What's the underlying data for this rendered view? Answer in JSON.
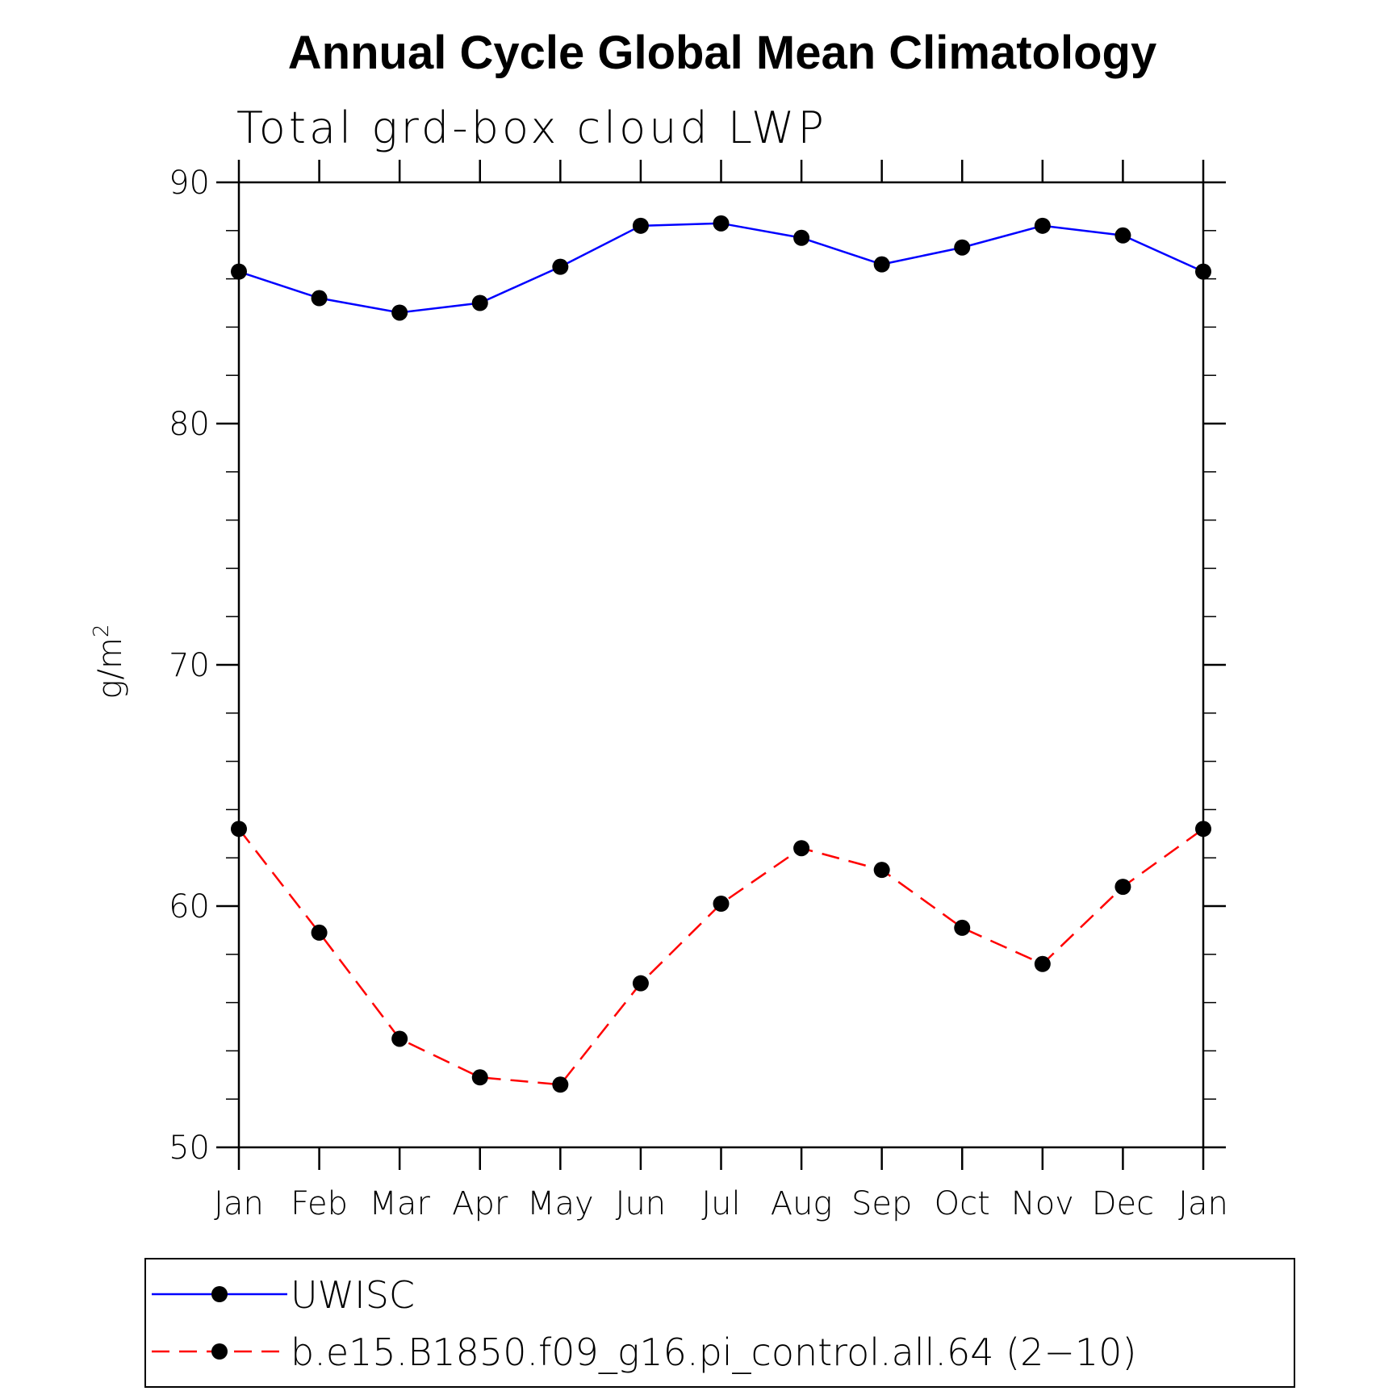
{
  "chart_data": {
    "type": "line",
    "title": "Annual Cycle Global Mean Climatology",
    "subtitle": "Total grd-box cloud LWP",
    "ylabel_base": "g/m",
    "ylabel_sup": "2",
    "categories": [
      "Jan",
      "Feb",
      "Mar",
      "Apr",
      "May",
      "Jun",
      "Jul",
      "Aug",
      "Sep",
      "Oct",
      "Nov",
      "Dec",
      "Jan"
    ],
    "ylim": [
      50,
      90
    ],
    "yticks": [
      50,
      60,
      70,
      80,
      90
    ],
    "grid": false,
    "legend_position": "bottom",
    "series": [
      {
        "name": "UWISC",
        "color": "#0000ff",
        "dash": "solid",
        "marker": "filled-circle",
        "values": [
          86.3,
          85.2,
          84.6,
          85.0,
          86.5,
          88.2,
          88.3,
          87.7,
          86.6,
          87.3,
          88.2,
          87.8,
          86.3
        ]
      },
      {
        "name": "b.e15.B1850.f09_g16.pi_control.all.64 (2−10)",
        "color": "#ff0000",
        "dash": "dashed",
        "marker": "filled-circle",
        "values": [
          63.2,
          58.9,
          54.5,
          52.9,
          52.6,
          56.8,
          60.1,
          62.4,
          61.5,
          59.1,
          57.6,
          60.8,
          63.2
        ]
      }
    ]
  }
}
